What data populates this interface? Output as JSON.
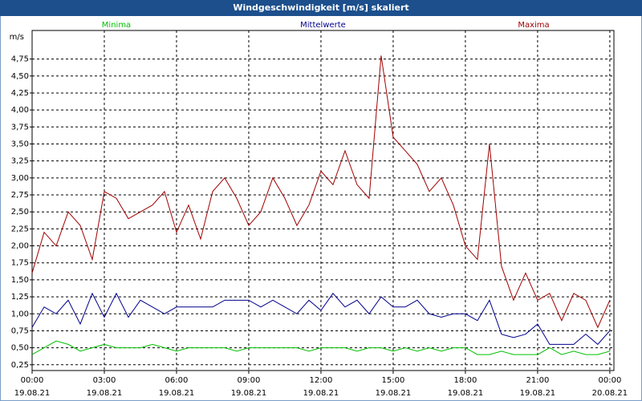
{
  "chart_data": {
    "type": "line",
    "title": "Windgeschwindigkeit [m/s] skaliert",
    "y_unit": "m/s",
    "x": [
      0,
      0.5,
      1,
      1.5,
      2,
      2.5,
      3,
      3.5,
      4,
      4.5,
      5,
      5.5,
      6,
      6.5,
      7,
      7.5,
      8,
      8.5,
      9,
      9.5,
      10,
      10.5,
      11,
      11.5,
      12,
      12.5,
      13,
      13.5,
      14,
      14.5,
      15,
      15.5,
      16,
      16.5,
      17,
      17.5,
      18,
      18.5,
      19,
      19.5,
      20,
      20.5,
      21,
      21.5,
      22,
      22.5,
      23,
      23.5,
      24
    ],
    "series": [
      {
        "name": "Minima",
        "color": "#00c000",
        "values": [
          0.4,
          0.5,
          0.6,
          0.55,
          0.45,
          0.5,
          0.55,
          0.5,
          0.5,
          0.5,
          0.55,
          0.5,
          0.45,
          0.5,
          0.5,
          0.5,
          0.5,
          0.45,
          0.5,
          0.5,
          0.5,
          0.5,
          0.5,
          0.45,
          0.5,
          0.5,
          0.5,
          0.45,
          0.5,
          0.5,
          0.45,
          0.5,
          0.45,
          0.5,
          0.45,
          0.5,
          0.5,
          0.4,
          0.4,
          0.45,
          0.4,
          0.4,
          0.4,
          0.5,
          0.4,
          0.45,
          0.4,
          0.4,
          0.45
        ]
      },
      {
        "name": "Mittelwerte",
        "color": "#00008b",
        "values": [
          0.8,
          1.1,
          1.0,
          1.2,
          0.85,
          1.3,
          0.95,
          1.3,
          0.95,
          1.2,
          1.1,
          1.0,
          1.1,
          1.1,
          1.1,
          1.1,
          1.2,
          1.2,
          1.2,
          1.1,
          1.2,
          1.1,
          1.0,
          1.2,
          1.05,
          1.3,
          1.1,
          1.2,
          1.0,
          1.25,
          1.1,
          1.1,
          1.2,
          1.0,
          0.95,
          1.0,
          1.0,
          0.9,
          1.2,
          0.7,
          0.65,
          0.7,
          0.85,
          0.55,
          0.55,
          0.55,
          0.7,
          0.55,
          0.75
        ]
      },
      {
        "name": "Maxima",
        "color": "#a00000",
        "values": [
          1.6,
          2.2,
          2.0,
          2.5,
          2.3,
          1.8,
          2.8,
          2.7,
          2.4,
          2.5,
          2.6,
          2.8,
          2.2,
          2.6,
          2.1,
          2.8,
          3.0,
          2.7,
          2.3,
          2.5,
          3.0,
          2.7,
          2.3,
          2.6,
          3.1,
          2.9,
          3.4,
          2.9,
          2.7,
          4.8,
          3.6,
          3.4,
          3.2,
          2.8,
          3.0,
          2.6,
          2.0,
          1.8,
          3.5,
          1.7,
          1.2,
          1.6,
          1.2,
          1.3,
          0.9,
          1.3,
          1.2,
          0.8,
          1.2
        ]
      }
    ],
    "xlim": [
      0,
      24.17
    ],
    "xticks": [
      {
        "value": 0,
        "label": "00:00"
      },
      {
        "value": 3,
        "label": "03:00"
      },
      {
        "value": 6,
        "label": "06:00"
      },
      {
        "value": 9,
        "label": "09:00"
      },
      {
        "value": 12,
        "label": "12:00"
      },
      {
        "value": 15,
        "label": "15:00"
      },
      {
        "value": 18,
        "label": "18:00"
      },
      {
        "value": 21,
        "label": "21:00"
      },
      {
        "value": 24,
        "label": "00:00"
      }
    ],
    "xtick_dates": [
      "19.08.21",
      "19.08.21",
      "19.08.21",
      "19.08.21",
      "19.08.21",
      "19.08.21",
      "19.08.21",
      "19.08.21",
      "20.08.21"
    ],
    "ylim": [
      0.165,
      5.17
    ],
    "yticks": [
      {
        "value": 0.25,
        "label": "0,25"
      },
      {
        "value": 0.5,
        "label": "0,50"
      },
      {
        "value": 0.75,
        "label": "0,75"
      },
      {
        "value": 1,
        "label": "1,00"
      },
      {
        "value": 1.25,
        "label": "1,25"
      },
      {
        "value": 1.5,
        "label": "1,50"
      },
      {
        "value": 1.75,
        "label": "1,75"
      },
      {
        "value": 2,
        "label": "2,00"
      },
      {
        "value": 2.25,
        "label": "2,25"
      },
      {
        "value": 2.5,
        "label": "2,50"
      },
      {
        "value": 2.75,
        "label": "2,75"
      },
      {
        "value": 3,
        "label": "3,00"
      },
      {
        "value": 3.25,
        "label": "3,25"
      },
      {
        "value": 3.5,
        "label": "3,50"
      },
      {
        "value": 3.75,
        "label": "3,75"
      },
      {
        "value": 4,
        "label": "4,00"
      },
      {
        "value": 4.25,
        "label": "4,25"
      },
      {
        "value": 4.5,
        "label": "4,50"
      },
      {
        "value": 4.75,
        "label": "4,75"
      }
    ],
    "grid": true
  }
}
